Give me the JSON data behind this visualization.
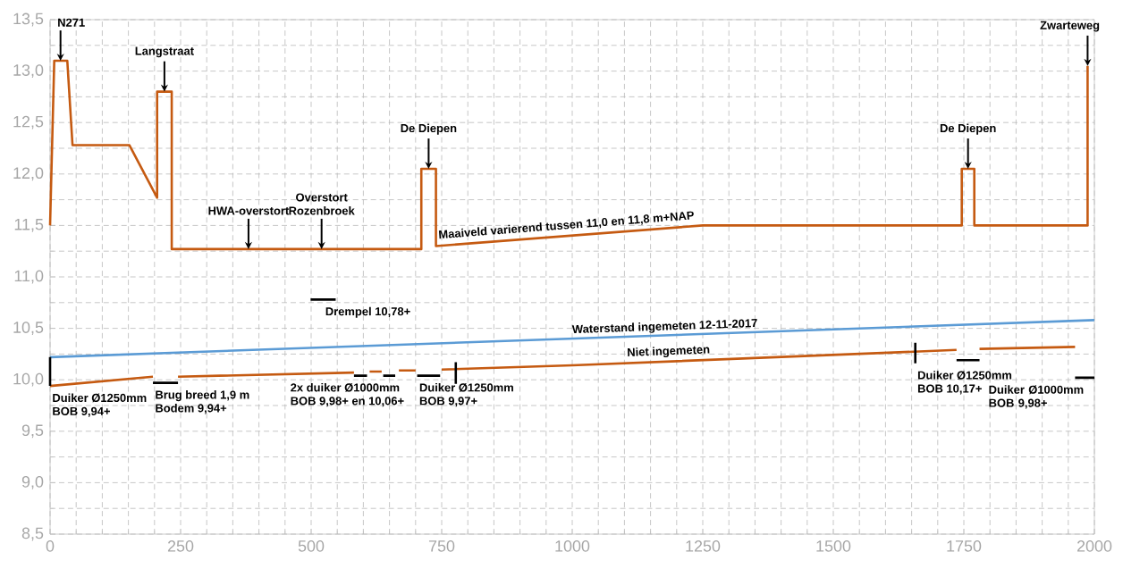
{
  "chart_data": {
    "type": "line",
    "xlim": [
      0,
      2000
    ],
    "ylim": [
      8.5,
      13.5
    ],
    "xticks": [
      0,
      250,
      500,
      750,
      1000,
      1250,
      1500,
      1750,
      2000
    ],
    "yticks": [
      {
        "value": 8.5,
        "label": "8,5"
      },
      {
        "value": 9.0,
        "label": "9,0"
      },
      {
        "value": 9.5,
        "label": "9,5"
      },
      {
        "value": 10.0,
        "label": "10,0"
      },
      {
        "value": 10.5,
        "label": "10,5"
      },
      {
        "value": 11.0,
        "label": "11,0"
      },
      {
        "value": 11.5,
        "label": "11,5"
      },
      {
        "value": 12.0,
        "label": "12,0"
      },
      {
        "value": 12.5,
        "label": "12,5"
      },
      {
        "value": 13.0,
        "label": "13,0"
      },
      {
        "value": 13.5,
        "label": "13,5"
      }
    ],
    "grid": true,
    "marker": "none",
    "series": [
      {
        "color": "#c55a11",
        "x": [
          0,
          8,
          33,
          43,
          152,
          205,
          205,
          233,
          233,
          711,
          711,
          739,
          739,
          1250,
          1746,
          1746,
          1770,
          1770,
          1987,
          1987
        ],
        "values": [
          11.5,
          13.1,
          13.1,
          12.28,
          12.28,
          11.77,
          12.8,
          12.8,
          11.27,
          11.27,
          12.05,
          12.05,
          11.3,
          11.5,
          11.5,
          12.05,
          12.05,
          11.5,
          11.5,
          13.05
        ]
      },
      {
        "color": "#5b9bd5",
        "x": [
          0,
          2000
        ],
        "values": [
          10.22,
          10.58
        ]
      },
      {
        "color": "#c55a11",
        "x": [
          0,
          197,
          220,
          245,
          582,
          595,
          612,
          635,
          650,
          668,
          700,
          725,
          750,
          1000,
          1736,
          1758,
          1780,
          1963
        ],
        "values": [
          9.94,
          10.03,
          null,
          10.03,
          10.07,
          null,
          10.08,
          10.08,
          null,
          10.09,
          10.09,
          null,
          10.1,
          10.14,
          10.29,
          null,
          10.3,
          10.32
        ]
      },
      {
        "color": "#000000",
        "x": [
          499,
          547,
          520,
          0,
          0,
          100,
          197,
          245,
          400,
          582,
          607,
          620,
          638,
          661,
          680,
          703,
          747,
          760,
          777,
          777,
          900,
          1657,
          1657,
          1700,
          1736,
          1780,
          1800,
          1963,
          2000
        ],
        "values": [
          10.78,
          10.78,
          null,
          10.22,
          9.94,
          null,
          9.97,
          9.97,
          null,
          10.04,
          10.04,
          null,
          10.04,
          10.04,
          null,
          10.04,
          10.04,
          null,
          9.96,
          10.17,
          null,
          10.16,
          10.36,
          null,
          10.19,
          10.19,
          null,
          10.02,
          10.02
        ]
      }
    ],
    "annotations": [
      {
        "text": "N271",
        "x": 20,
        "y": 13.1
      },
      {
        "text": "Langstraat",
        "x": 219,
        "y": 12.8
      },
      {
        "text": "HWA-overstort",
        "x": 380,
        "y": 11.27
      },
      {
        "text": "Overstort Rozenbroek",
        "x": 520,
        "y": 11.27
      },
      {
        "text": "De Diepen",
        "x": 725,
        "y": 12.05
      },
      {
        "text": "De Diepen",
        "x": 1758,
        "y": 12.05
      },
      {
        "text": "Zwarteweg",
        "x": 1987,
        "y": 13.05
      },
      {
        "text": "Maaiveld varierend tussen 11,0 en 11,8 m+NAP",
        "x": 990,
        "y": 11.42
      },
      {
        "text": "Drempel 10,78+",
        "x": 523,
        "y": 10.78
      },
      {
        "text": "Waterstand ingemeten 12-11-2017",
        "x": 1178,
        "y": 10.43
      },
      {
        "text": "Niet ingemeten",
        "x": 1185,
        "y": 10.19
      },
      {
        "text": "Duiker Ø1250mm",
        "x": 0,
        "y": 9.94
      },
      {
        "text": "BOB 9,94+",
        "x": 0,
        "y": 9.94
      },
      {
        "text": "Brug breed 1,9 m",
        "x": 197,
        "y": 9.97
      },
      {
        "text": "Bodem 9,94+",
        "x": 197,
        "y": 9.97
      },
      {
        "text": "2x duiker Ø1000mm",
        "x": 456,
        "y": 10.04
      },
      {
        "text": "BOB 9,98+ en 10,06+",
        "x": 456,
        "y": 10.04
      },
      {
        "text": "Duiker Ø1250mm",
        "x": 703,
        "y": 10.04
      },
      {
        "text": "BOB 9,97+",
        "x": 703,
        "y": 10.04
      },
      {
        "text": "Duiker Ø1250mm",
        "x": 1657,
        "y": 10.16
      },
      {
        "text": "BOB 10,17+",
        "x": 1657,
        "y": 10.16
      },
      {
        "text": "Duiker Ø1000mm BOB 9,98+",
        "x": 2000,
        "y": 10.02
      }
    ]
  }
}
